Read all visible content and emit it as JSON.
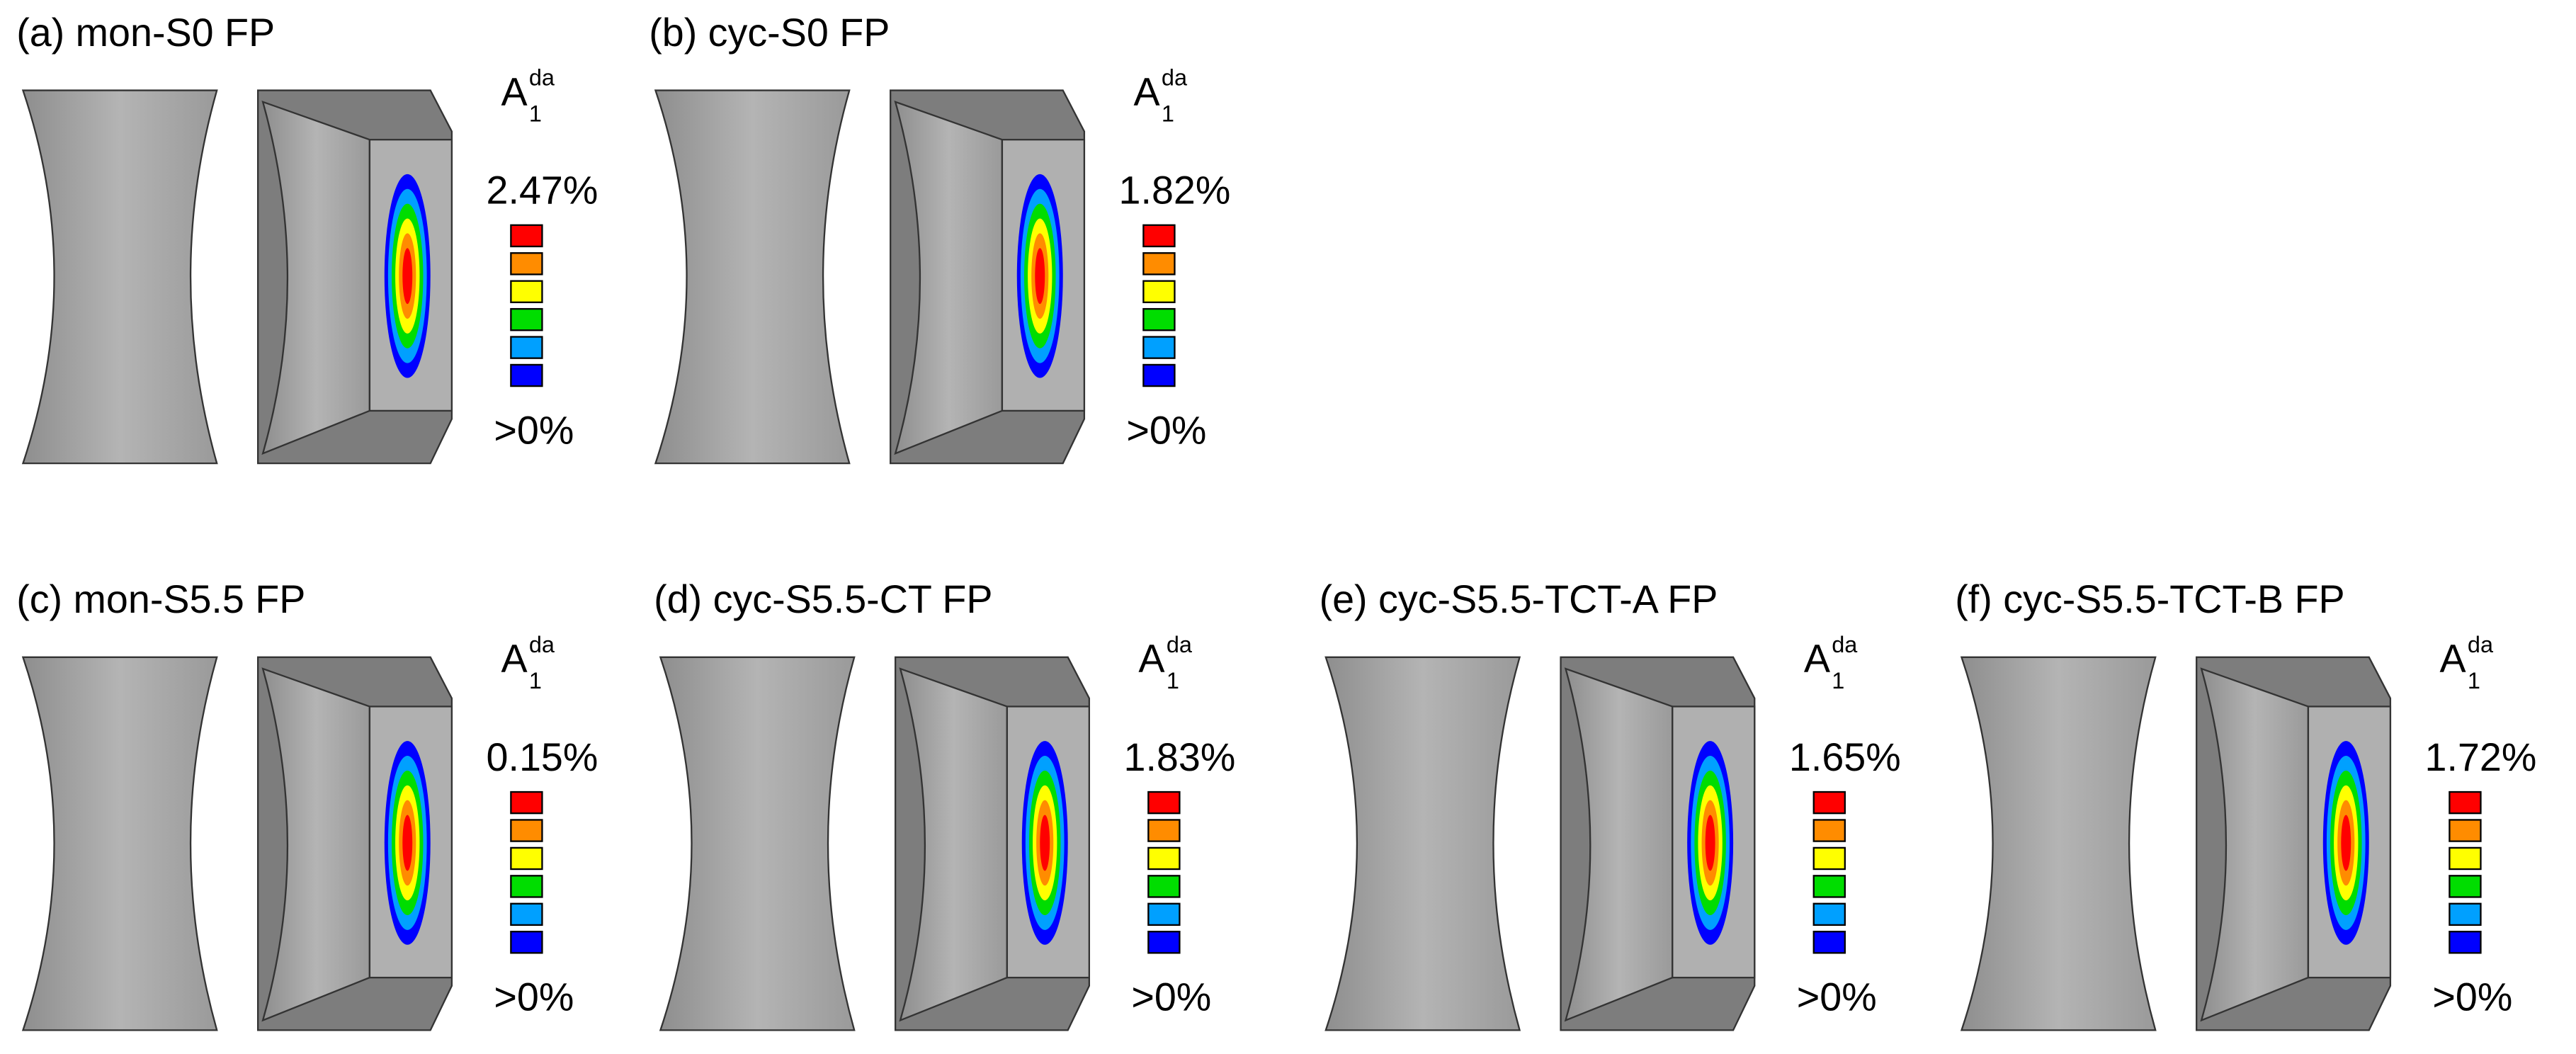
{
  "panels": [
    {
      "label": "(a) mon-S0  FP",
      "legend": {
        "symbol": "A",
        "sup": "da",
        "sub": "1",
        "max": "2.47%",
        "min": ">0%"
      }
    },
    {
      "label": "(b) cyc-S0  FP",
      "legend": {
        "symbol": "A",
        "sup": "da",
        "sub": "1",
        "max": "1.82%",
        "min": ">0%"
      }
    },
    {
      "label": "(c) mon-S5.5  FP",
      "legend": {
        "symbol": "A",
        "sup": "da",
        "sub": "1",
        "max": "0.15%",
        "min": ">0%"
      }
    },
    {
      "label": "(d) cyc-S5.5-CT  FP",
      "legend": {
        "symbol": "A",
        "sup": "da",
        "sub": "1",
        "max": "1.83%",
        "min": ">0%"
      }
    },
    {
      "label": "(e) cyc-S5.5-TCT-A  FP",
      "legend": {
        "symbol": "A",
        "sup": "da",
        "sub": "1",
        "max": "1.65%",
        "min": ">0%"
      }
    },
    {
      "label": "(f) cyc-S5.5-TCT-B  FP",
      "legend": {
        "symbol": "A",
        "sup": "da",
        "sub": "1",
        "max": "1.72%",
        "min": ">0%"
      }
    }
  ]
}
